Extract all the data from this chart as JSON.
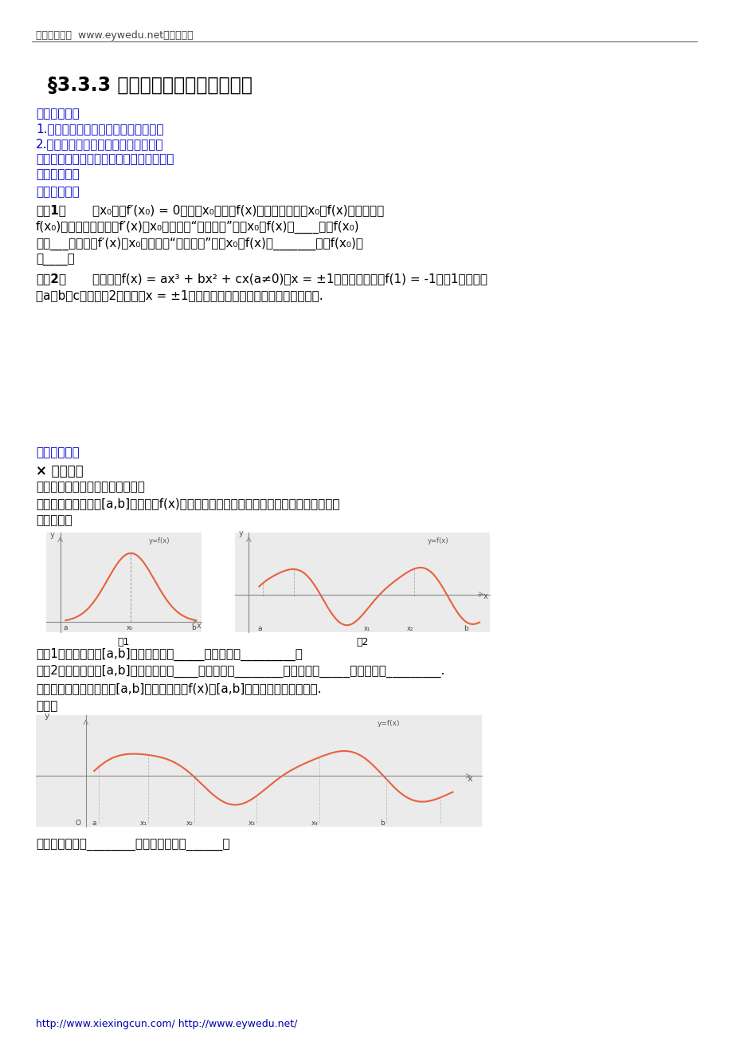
{
  "bg_color": "#ffffff",
  "header_text": "数学备课大师  www.eywedu.net【全免费】",
  "title": "§3.3.3 函数的最大（小）值与导数",
  "label_xuexi": "【学习目标】",
  "item1": "1.理解函数的最大值和最小值的概念；",
  "item2": "2.掌据用导数求函数最值的方法和步骤",
  "label_zhongdian": "【重点难点】导数求函数最值的方法和步骤",
  "label_neirong": "【学习内容】",
  "subsection1": "一、课前准备",
  "rev1_bold": "复习1：",
  "rev1_l1": "若x₀满足f′(x₀) = 0，且在x₀的两侧f(x)的导数异号，则x₀是f(x)的极值点，",
  "rev1_l2": "f(x₀)是极值，并且如果f′(x)在x₀两侧满足“左正右负”，则x₀是f(x)的____点，f(x₀)",
  "rev1_l3": "是极___值；如果f′(x)在x₀两侧满足“左负右正”，则x₀是f(x)的_______点，f(x₀)是",
  "rev1_l4": "极____值",
  "rev2_bold": "复习2：",
  "rev2_l1": "已知函数f(x) = ax³ + bx² + cx(a≠0)在x = ±1时取得极值，且f(1) = -1，（1）试求常",
  "rev2_l2": "数a、b、c的值；（2）试判断x = ±1时函数有极大值还是极小值，并说明理由.",
  "subsection2": "二、新课导学",
  "study_explore": "× 学习探究",
  "task1": "探究任务一：函数的最大（小）値",
  "problem": "问题：观察在闭区间[a,b]上的函数f(x)的图象，你能找出它的极大（小）値吗？最大値，",
  "problem2": "最小値呜？",
  "fig1_label": "图1",
  "fig2_label": "图2",
  "infig1": "在图1中，在闭区间[a,b]上的最大値是_____，最小値是_________；",
  "infig2": "在图2中，在闭区间[a,b]上的极大値是____，极小値是________；最大値是_____，最小値是_________.",
  "newzhi": "新知：一般地，在闭区间[a,b]上连续的函数f(x)在[a,b]上必有最大値与最小値.",
  "trytry": "试试：",
  "above_fig": "上图的极大値点________，为极小値点为______；",
  "footer": "http://www.xiexingcun.com/ http://www.eywedu.net/",
  "blue": "#0000CC",
  "black": "#000000",
  "orange": "#E8603C",
  "gray_line": "#666666"
}
